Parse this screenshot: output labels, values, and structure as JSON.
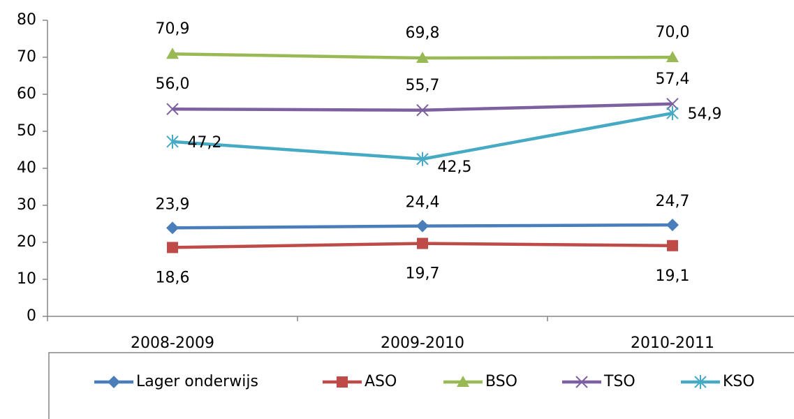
{
  "chart_data": {
    "type": "line",
    "categories": [
      "2008-2009",
      "2009-2010",
      "2010-2011"
    ],
    "series": [
      {
        "name": "Lager onderwijs",
        "color": "#4a7ebb",
        "marker": "diamond",
        "values": [
          23.9,
          24.4,
          24.7
        ],
        "value_labels": [
          "23,9",
          "24,4",
          "24,7"
        ]
      },
      {
        "name": "ASO",
        "color": "#be4b48",
        "marker": "square",
        "values": [
          18.6,
          19.7,
          19.1
        ],
        "value_labels": [
          "18,6",
          "19,7",
          "19,1"
        ]
      },
      {
        "name": "BSO",
        "color": "#98b954",
        "marker": "triangle",
        "values": [
          70.9,
          69.8,
          70.0
        ],
        "value_labels": [
          "70,9",
          "69,8",
          "70,0"
        ]
      },
      {
        "name": "TSO",
        "color": "#7d60a0",
        "marker": "x",
        "values": [
          56.0,
          55.7,
          57.4
        ],
        "value_labels": [
          "56,0",
          "55,7",
          "57,4"
        ]
      },
      {
        "name": "KSO",
        "color": "#46aac5",
        "marker": "star",
        "values": [
          47.2,
          42.5,
          54.9
        ],
        "value_labels": [
          "47,2",
          "42,5",
          "54,9"
        ]
      }
    ],
    "ylim": [
      0,
      80
    ],
    "yticks": [
      0,
      10,
      20,
      30,
      40,
      50,
      60,
      70,
      80
    ],
    "grid": false,
    "legend": "bottom"
  }
}
